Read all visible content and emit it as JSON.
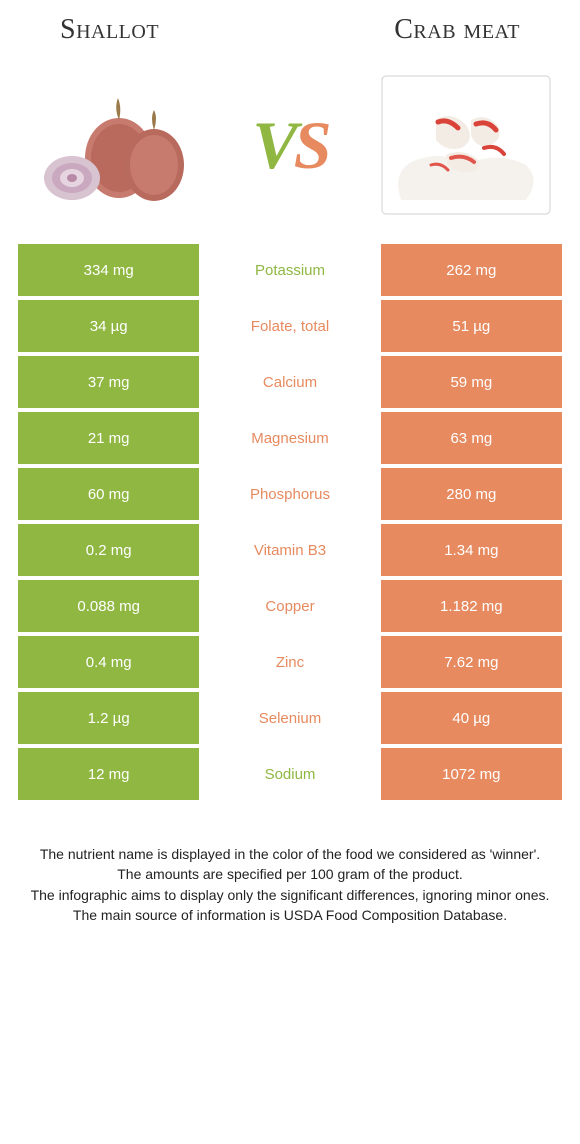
{
  "colors": {
    "left": "#8fb742",
    "right": "#e78a5f",
    "vs_left": "#8fb742",
    "vs_right": "#e78a5f"
  },
  "titles": {
    "left": "Shallot",
    "right": "Crab meat"
  },
  "vs": {
    "v": "V",
    "s": "S"
  },
  "rows": [
    {
      "left": "334 mg",
      "mid": "Potassium",
      "right": "262 mg",
      "winner": "left"
    },
    {
      "left": "34 µg",
      "mid": "Folate, total",
      "right": "51 µg",
      "winner": "right"
    },
    {
      "left": "37 mg",
      "mid": "Calcium",
      "right": "59 mg",
      "winner": "right"
    },
    {
      "left": "21 mg",
      "mid": "Magnesium",
      "right": "63 mg",
      "winner": "right"
    },
    {
      "left": "60 mg",
      "mid": "Phosphorus",
      "right": "280 mg",
      "winner": "right"
    },
    {
      "left": "0.2 mg",
      "mid": "Vitamin B3",
      "right": "1.34 mg",
      "winner": "right"
    },
    {
      "left": "0.088 mg",
      "mid": "Copper",
      "right": "1.182 mg",
      "winner": "right"
    },
    {
      "left": "0.4 mg",
      "mid": "Zinc",
      "right": "7.62 mg",
      "winner": "right"
    },
    {
      "left": "1.2 µg",
      "mid": "Selenium",
      "right": "40 µg",
      "winner": "right"
    },
    {
      "left": "12 mg",
      "mid": "Sodium",
      "right": "1072 mg",
      "winner": "left"
    }
  ],
  "footer": {
    "line1": "The nutrient name is displayed in the color of the food we considered as 'winner'.",
    "line2": "The amounts are specified per 100 gram of the product.",
    "line3": "The infographic aims to display only the significant differences, ignoring minor ones.",
    "line4": "The main source of information is USDA Food Composition Database."
  }
}
